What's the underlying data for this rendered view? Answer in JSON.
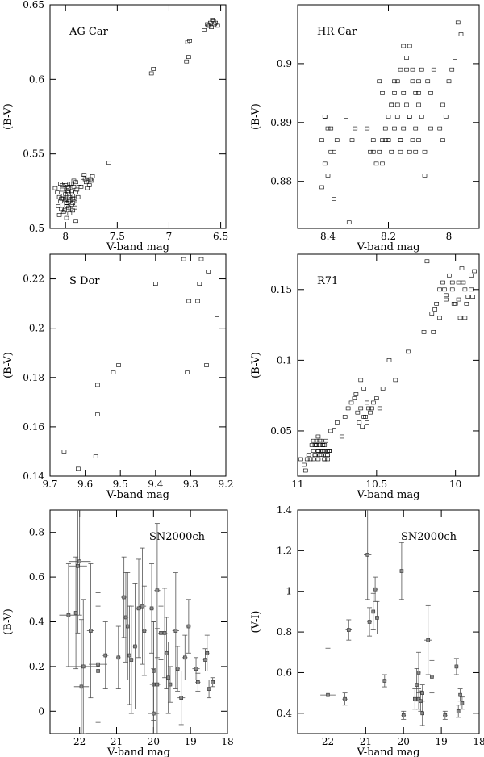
{
  "chart_data": [
    {
      "type": "scatter",
      "title": "AG Car",
      "xlabel": "V-band mag",
      "ylabel": "(B-V)",
      "xlim": [
        8.15,
        6.45
      ],
      "ylim": [
        0.5,
        0.65
      ],
      "x_inverted": true,
      "xticks": [
        8,
        7.5,
        7,
        6.5
      ],
      "xtick_labels": [
        "8",
        "7.5",
        "7",
        "6.5"
      ],
      "yticks": [
        0.5,
        0.55,
        0.6,
        0.65
      ],
      "ytick_labels": [
        "0.5",
        "0.55",
        "0.6",
        "0.65"
      ],
      "marker": "open-square",
      "x": [
        8.1,
        8.08,
        8.06,
        8.05,
        8.03,
        8.02,
        8.0,
        7.99,
        7.98,
        7.97,
        7.96,
        7.95,
        7.94,
        7.93,
        7.92,
        7.91,
        7.9,
        7.89,
        7.88,
        8.07,
        8.04,
        8.01,
        7.99,
        7.97,
        7.95,
        7.93,
        7.91,
        7.9,
        8.05,
        8.03,
        8.0,
        7.98,
        7.96,
        7.94,
        7.92,
        8.06,
        8.02,
        7.99,
        7.96,
        7.93,
        7.9,
        8.04,
        8.0,
        7.97,
        7.94,
        8.02,
        7.98,
        7.95,
        7.92,
        8.0,
        7.97,
        8.03,
        7.99,
        7.96,
        7.93,
        7.87,
        7.85,
        7.83,
        7.82,
        7.8,
        7.78,
        7.76,
        7.75,
        7.74,
        7.77,
        7.79,
        7.81,
        7.58,
        7.17,
        7.15,
        6.83,
        6.81,
        6.82,
        6.8,
        6.66,
        6.63,
        6.62,
        6.6,
        6.58,
        6.56,
        6.55,
        6.53,
        6.59,
        6.57,
        6.61
      ],
      "y": [
        0.527,
        0.524,
        0.521,
        0.518,
        0.526,
        0.52,
        0.523,
        0.517,
        0.524,
        0.527,
        0.521,
        0.519,
        0.525,
        0.522,
        0.528,
        0.52,
        0.524,
        0.526,
        0.521,
        0.515,
        0.513,
        0.512,
        0.515,
        0.514,
        0.513,
        0.517,
        0.514,
        0.531,
        0.53,
        0.529,
        0.529,
        0.528,
        0.53,
        0.53,
        0.532,
        0.509,
        0.511,
        0.507,
        0.51,
        0.512,
        0.505,
        0.52,
        0.519,
        0.518,
        0.516,
        0.522,
        0.525,
        0.522,
        0.518,
        0.52,
        0.524,
        0.52,
        0.517,
        0.518,
        0.52,
        0.53,
        0.528,
        0.534,
        0.536,
        0.531,
        0.532,
        0.533,
        0.532,
        0.535,
        0.529,
        0.527,
        0.533,
        0.544,
        0.604,
        0.607,
        0.612,
        0.615,
        0.625,
        0.626,
        0.633,
        0.637,
        0.636,
        0.638,
        0.64,
        0.637,
        0.638,
        0.636,
        0.635,
        0.639,
        0.636
      ]
    },
    {
      "type": "scatter",
      "title": "HR Car",
      "xlabel": "V-band mag",
      "ylabel": "(B-V)",
      "xlim": [
        8.5,
        7.9
      ],
      "ylim": [
        0.872,
        0.91
      ],
      "x_inverted": true,
      "xticks": [
        8.4,
        8.2,
        8
      ],
      "xtick_labels": [
        "8.4",
        "8.2",
        "8"
      ],
      "yticks": [
        0.88,
        0.89,
        0.9
      ],
      "ytick_labels": [
        "0.88",
        "0.89",
        "0.9"
      ],
      "marker": "open-square",
      "x": [
        8.41,
        8.4,
        8.42,
        8.39,
        8.41,
        8.4,
        8.38,
        8.42,
        8.39,
        8.41,
        8.37,
        8.38,
        8.33,
        8.31,
        8.34,
        8.32,
        8.27,
        8.26,
        8.25,
        8.24,
        8.23,
        8.22,
        8.22,
        8.21,
        8.2,
        8.2,
        8.19,
        8.19,
        8.18,
        8.18,
        8.17,
        8.17,
        8.16,
        8.16,
        8.15,
        8.15,
        8.14,
        8.14,
        8.13,
        8.13,
        8.12,
        8.12,
        8.11,
        8.11,
        8.1,
        8.1,
        8.09,
        8.09,
        8.08,
        8.07,
        8.06,
        8.05,
        8.03,
        8.02,
        8.02,
        8.01,
        8.0,
        7.99,
        7.98,
        7.97,
        7.96,
        8.18,
        8.15,
        8.12,
        8.1,
        8.08,
        8.06,
        8.25,
        8.22,
        8.2,
        8.17,
        8.14,
        8.11,
        8.21,
        8.19,
        8.16,
        8.13,
        8.1,
        8.23,
        8.16,
        8.13
      ],
      "y": [
        0.891,
        0.889,
        0.887,
        0.885,
        0.883,
        0.881,
        0.877,
        0.879,
        0.889,
        0.891,
        0.887,
        0.885,
        0.873,
        0.889,
        0.891,
        0.887,
        0.889,
        0.885,
        0.887,
        0.883,
        0.885,
        0.887,
        0.895,
        0.889,
        0.891,
        0.887,
        0.893,
        0.885,
        0.895,
        0.889,
        0.897,
        0.891,
        0.899,
        0.887,
        0.895,
        0.889,
        0.901,
        0.893,
        0.903,
        0.891,
        0.897,
        0.899,
        0.889,
        0.895,
        0.887,
        0.893,
        0.899,
        0.891,
        0.885,
        0.897,
        0.895,
        0.899,
        0.889,
        0.887,
        0.893,
        0.891,
        0.897,
        0.899,
        0.901,
        0.907,
        0.905,
        0.897,
        0.903,
        0.887,
        0.895,
        0.881,
        0.889,
        0.885,
        0.883,
        0.887,
        0.893,
        0.899,
        0.885,
        0.887,
        0.893,
        0.885,
        0.891,
        0.897,
        0.897,
        0.887,
        0.885
      ]
    },
    {
      "type": "scatter",
      "title": "S Dor",
      "xlabel": "V-band mag",
      "ylabel": "(B-V)",
      "xlim": [
        9.7,
        9.2
      ],
      "ylim": [
        0.14,
        0.23
      ],
      "x_inverted": true,
      "xticks": [
        9.7,
        9.6,
        9.5,
        9.4,
        9.3,
        9.2
      ],
      "xtick_labels": [
        "9.7",
        "9.6",
        "9.5",
        "9.4",
        "9.3",
        "9.2"
      ],
      "yticks": [
        0.14,
        0.16,
        0.18,
        0.2,
        0.22
      ],
      "ytick_labels": [
        "0.14",
        "0.16",
        "0.18",
        "0.2",
        "0.22"
      ],
      "marker": "open-square",
      "x": [
        9.66,
        9.62,
        9.57,
        9.565,
        9.565,
        9.52,
        9.505,
        9.4,
        9.32,
        9.305,
        9.31,
        9.28,
        9.275,
        9.27,
        9.255,
        9.25,
        9.225
      ],
      "y": [
        0.15,
        0.143,
        0.148,
        0.165,
        0.177,
        0.182,
        0.185,
        0.218,
        0.228,
        0.211,
        0.182,
        0.211,
        0.218,
        0.228,
        0.185,
        0.223,
        0.204
      ]
    },
    {
      "type": "scatter",
      "title": "R71",
      "xlabel": "V-band mag",
      "ylabel": "(B-V)",
      "xlim": [
        11.0,
        9.85
      ],
      "ylim": [
        0.018,
        0.175
      ],
      "x_inverted": true,
      "xticks": [
        11,
        10.5,
        10
      ],
      "xtick_labels": [
        "11",
        "10.5",
        "10"
      ],
      "yticks": [
        0.05,
        0.1,
        0.15
      ],
      "ytick_labels": [
        "0.05",
        "0.1",
        "0.15"
      ],
      "marker": "open-square",
      "x": [
        10.98,
        10.96,
        10.95,
        10.94,
        10.93,
        10.92,
        10.9,
        10.89,
        10.88,
        10.87,
        10.86,
        10.85,
        10.84,
        10.83,
        10.82,
        10.81,
        10.8,
        10.91,
        10.9,
        10.89,
        10.88,
        10.87,
        10.86,
        10.85,
        10.84,
        10.83,
        10.82,
        10.81,
        10.89,
        10.87,
        10.85,
        10.83,
        10.81,
        10.88,
        10.86,
        10.84,
        10.82,
        10.8,
        10.9,
        10.87,
        10.85,
        10.83,
        10.81,
        10.79,
        10.77,
        10.75,
        10.72,
        10.7,
        10.68,
        10.66,
        10.64,
        10.62,
        10.6,
        10.58,
        10.56,
        10.54,
        10.52,
        10.5,
        10.48,
        10.63,
        10.61,
        10.59,
        10.57,
        10.55,
        10.6,
        10.58,
        10.56,
        10.53,
        10.46,
        10.42,
        10.38,
        10.3,
        10.2,
        10.18,
        10.15,
        10.12,
        10.1,
        10.08,
        10.06,
        10.04,
        10.02,
        10.0,
        9.98,
        9.96,
        9.94,
        9.92,
        9.9,
        9.88,
        10.14,
        10.1,
        10.06,
        10.02,
        9.98,
        9.94,
        9.9,
        10.13,
        10.07,
        10.01,
        9.95,
        9.89,
        9.97,
        9.93
      ],
      "y": [
        0.03,
        0.026,
        0.022,
        0.03,
        0.033,
        0.03,
        0.036,
        0.033,
        0.04,
        0.036,
        0.033,
        0.036,
        0.04,
        0.036,
        0.033,
        0.03,
        0.036,
        0.04,
        0.043,
        0.04,
        0.043,
        0.046,
        0.04,
        0.043,
        0.036,
        0.04,
        0.043,
        0.036,
        0.033,
        0.036,
        0.033,
        0.03,
        0.033,
        0.04,
        0.043,
        0.04,
        0.033,
        0.036,
        0.03,
        0.03,
        0.033,
        0.03,
        0.033,
        0.05,
        0.053,
        0.056,
        0.046,
        0.06,
        0.066,
        0.07,
        0.073,
        0.063,
        0.066,
        0.06,
        0.056,
        0.063,
        0.07,
        0.073,
        0.066,
        0.076,
        0.056,
        0.053,
        0.06,
        0.066,
        0.086,
        0.08,
        0.07,
        0.066,
        0.08,
        0.1,
        0.086,
        0.106,
        0.12,
        0.17,
        0.133,
        0.14,
        0.15,
        0.155,
        0.143,
        0.16,
        0.15,
        0.14,
        0.155,
        0.165,
        0.15,
        0.145,
        0.16,
        0.163,
        0.12,
        0.13,
        0.146,
        0.155,
        0.143,
        0.13,
        0.15,
        0.136,
        0.15,
        0.14,
        0.155,
        0.145,
        0.13,
        0.14
      ]
    },
    {
      "type": "scatter",
      "title": "SN2000ch",
      "xlabel": "V-band mag",
      "ylabel": "(B-V)",
      "xlim": [
        22.8,
        18.0
      ],
      "ylim": [
        -0.1,
        0.9
      ],
      "x_inverted": true,
      "xticks": [
        22,
        21,
        20,
        19,
        18
      ],
      "xtick_labels": [
        "22",
        "21",
        "20",
        "19",
        "18"
      ],
      "yticks": [
        0,
        0.2,
        0.4,
        0.6,
        0.8
      ],
      "ytick_labels": [
        "0",
        "0.2",
        "0.4",
        "0.6",
        "0.8"
      ],
      "marker": "square-with-errorbars",
      "x": [
        22.3,
        22.1,
        22.0,
        21.95,
        21.7,
        21.5,
        21.3,
        20.95,
        20.8,
        20.75,
        20.7,
        20.65,
        20.6,
        20.5,
        20.4,
        20.3,
        20.25,
        20.05,
        20.0,
        20.0,
        19.9,
        19.8,
        19.7,
        19.65,
        19.6,
        19.55,
        19.4,
        19.35,
        19.25,
        19.15,
        19.05,
        18.85,
        18.8,
        18.6,
        18.55,
        18.5,
        18.4,
        22.05,
        21.9,
        21.5,
        20.0,
        19.9
      ],
      "y": [
        0.43,
        0.44,
        0.67,
        0.11,
        0.36,
        0.21,
        0.25,
        0.24,
        0.51,
        0.42,
        0.38,
        0.25,
        0.23,
        0.29,
        0.46,
        0.47,
        0.36,
        0.46,
        0.12,
        0.18,
        0.54,
        0.35,
        0.35,
        0.26,
        0.15,
        0.12,
        0.36,
        0.19,
        0.06,
        0.24,
        0.38,
        0.19,
        0.13,
        0.23,
        0.26,
        0.1,
        0.13,
        0.65,
        0.2,
        0.18,
        -0.01,
        0.12
      ],
      "yerr": [
        0.23,
        0.25,
        0.24,
        0.3,
        0.3,
        0.26,
        0.15,
        0.14,
        0.18,
        0.2,
        0.24,
        0.22,
        0.24,
        0.28,
        0.22,
        0.26,
        0.2,
        0.2,
        0.28,
        0.22,
        0.3,
        0.12,
        0.2,
        0.16,
        0.16,
        0.08,
        0.26,
        0.1,
        0.12,
        0.1,
        0.12,
        0.05,
        0.04,
        0.05,
        0.08,
        0.04,
        0.02,
        0.3,
        0.3,
        0.35,
        0.2,
        0.25
      ],
      "xerr": [
        0.25,
        0.2,
        0.3,
        0.2,
        0.1,
        0.25,
        0.08,
        0.06,
        0.08,
        0.07,
        0.05,
        0.05,
        0.05,
        0.06,
        0.07,
        0.1,
        0.06,
        0.06,
        0.1,
        0.08,
        0.08,
        0.07,
        0.07,
        0.06,
        0.05,
        0.05,
        0.09,
        0.06,
        0.1,
        0.07,
        0.06,
        0.1,
        0.07,
        0.06,
        0.06,
        0.05,
        0.05,
        0.25,
        0.45,
        0.2,
        0.15,
        0.08
      ]
    },
    {
      "type": "scatter",
      "title": "SN2000ch",
      "xlabel": "V-band mag",
      "ylabel": "(V-I)",
      "xlim": [
        22.8,
        18.0
      ],
      "ylim": [
        0.3,
        1.4
      ],
      "x_inverted": true,
      "xticks": [
        22,
        21,
        20,
        19,
        18
      ],
      "xtick_labels": [
        "22",
        "21",
        "20",
        "19",
        "18"
      ],
      "yticks": [
        0.4,
        0.6,
        0.8,
        1.0,
        1.2,
        1.4
      ],
      "ytick_labels": [
        "0.4",
        "0.6",
        "0.8",
        "1",
        "1.2",
        "1.4"
      ],
      "marker": "square-with-errorbars",
      "x": [
        22.0,
        21.55,
        21.45,
        20.95,
        20.9,
        20.8,
        20.75,
        20.7,
        20.5,
        20.05,
        20.0,
        19.7,
        19.65,
        19.6,
        19.6,
        19.55,
        19.5,
        19.5,
        19.35,
        19.25,
        18.9,
        18.6,
        18.55,
        18.5,
        18.45
      ],
      "y": [
        0.49,
        0.47,
        0.81,
        1.18,
        0.85,
        0.9,
        1.01,
        0.87,
        0.56,
        1.1,
        0.39,
        0.47,
        0.54,
        0.47,
        0.6,
        0.46,
        0.4,
        0.5,
        0.76,
        0.58,
        0.39,
        0.63,
        0.41,
        0.49,
        0.45
      ],
      "yerr": [
        0.23,
        0.03,
        0.05,
        0.22,
        0.07,
        0.09,
        0.06,
        0.08,
        0.03,
        0.14,
        0.02,
        0.05,
        0.08,
        0.05,
        0.1,
        0.05,
        0.06,
        0.04,
        0.17,
        0.08,
        0.02,
        0.04,
        0.03,
        0.03,
        0.03
      ],
      "xerr": [
        0.2,
        0.07,
        0.08,
        0.1,
        0.06,
        0.05,
        0.06,
        0.05,
        0.05,
        0.12,
        0.06,
        0.05,
        0.05,
        0.04,
        0.05,
        0.04,
        0.05,
        0.04,
        0.1,
        0.05,
        0.06,
        0.05,
        0.04,
        0.04,
        0.04
      ]
    }
  ]
}
